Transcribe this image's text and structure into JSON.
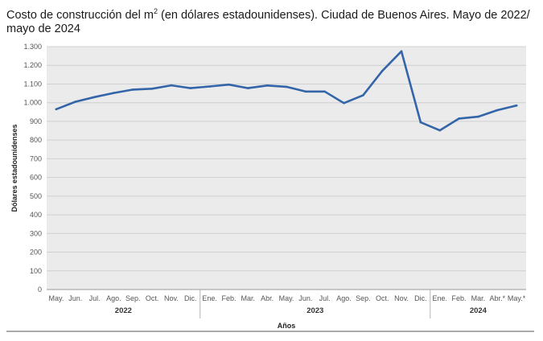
{
  "chart_data": {
    "type": "line",
    "title_main": "Costo de construcción del m",
    "title_sup": "2",
    "title_rest": " (en dólares estadounidenses). Ciudad de Buenos Aires. Mayo de 2022/",
    "title_line2": "mayo de 2024",
    "xlabel": "Años",
    "ylabel": "Dólares estadounidenses",
    "ylim": [
      0,
      1300
    ],
    "yticks": [
      0,
      100,
      200,
      300,
      400,
      500,
      600,
      700,
      800,
      900,
      1000,
      1100,
      1200,
      1300
    ],
    "ytick_labels": [
      "0",
      "100",
      "200",
      "300",
      "400",
      "500",
      "600",
      "700",
      "800",
      "900",
      "1.000",
      "1.100",
      "1.200",
      "1.300"
    ],
    "categories": [
      "May.",
      "Jun.",
      "Jul.",
      "Ago.",
      "Sep.",
      "Oct.",
      "Nov.",
      "Dic.",
      "Ene.",
      "Feb.",
      "Mar.",
      "Abr.",
      "May.",
      "Jun.",
      "Jul.",
      "Ago.",
      "Sep.",
      "Oct.",
      "Nov.",
      "Dic.",
      "Ene.",
      "Feb.",
      "Mar.",
      "Abr.*",
      "May.*"
    ],
    "years": [
      {
        "label": "2022",
        "start": 0,
        "end": 7
      },
      {
        "label": "2023",
        "start": 8,
        "end": 19
      },
      {
        "label": "2024",
        "start": 20,
        "end": 24
      }
    ],
    "series": [
      {
        "name": "Costo de construcción del m2",
        "color": "#3465a8",
        "values": [
          965,
          1005,
          1030,
          1052,
          1070,
          1075,
          1093,
          1078,
          1087,
          1097,
          1078,
          1092,
          1085,
          1060,
          1060,
          998,
          1040,
          1170,
          1275,
          895,
          852,
          915,
          925,
          960,
          985
        ]
      }
    ],
    "grid": true
  }
}
